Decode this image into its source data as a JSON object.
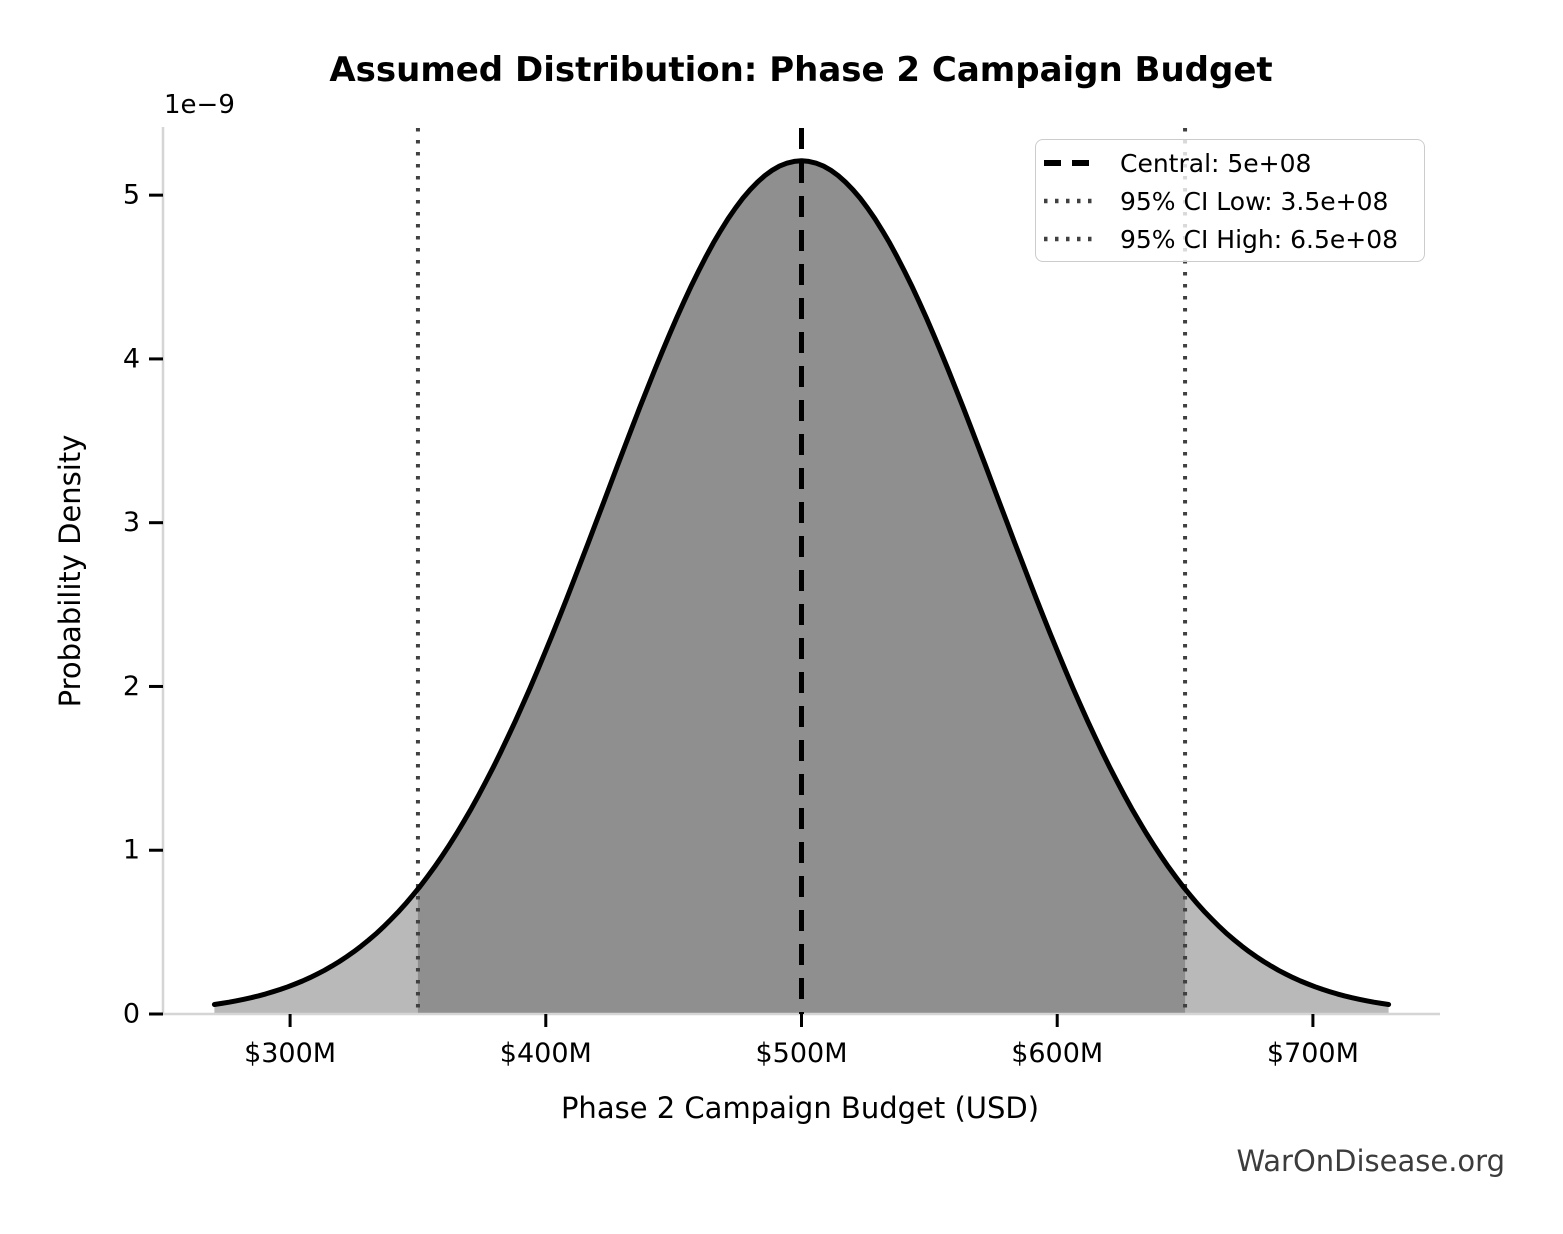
{
  "chart_data": {
    "type": "area",
    "title": "Assumed Distribution: Phase 2 Campaign Budget",
    "xlabel": "Phase 2 Campaign Budget (USD)",
    "ylabel": "Probability Density",
    "y_offset_label": "1e−9",
    "watermark": "WarOnDisease.org",
    "distribution": {
      "kind": "normal",
      "central": 500000000,
      "ci95_low": 350000000,
      "ci95_high": 650000000,
      "sigma": 76530000,
      "peak_density_1e9": 5.21
    },
    "curve_range_millions": [
      270.4,
      729.6
    ],
    "xlim_millions": [
      250.3,
      749.7
    ],
    "ylim_1e9": [
      0,
      5.41
    ],
    "x_ticks": [
      {
        "label": "$300M",
        "millions": 300
      },
      {
        "label": "$400M",
        "millions": 400
      },
      {
        "label": "$500M",
        "millions": 500
      },
      {
        "label": "$600M",
        "millions": 600
      },
      {
        "label": "$700M",
        "millions": 700
      }
    ],
    "y_ticks": [
      {
        "label": "0",
        "value": 0
      },
      {
        "label": "1",
        "value": 1
      },
      {
        "label": "2",
        "value": 2
      },
      {
        "label": "3",
        "value": 3
      },
      {
        "label": "4",
        "value": 4
      },
      {
        "label": "5",
        "value": 5
      }
    ],
    "legend": [
      {
        "label": "Central: 5e+08",
        "style": "dashed",
        "color": "#000000"
      },
      {
        "label": "95% CI Low: 3.5e+08",
        "style": "dotted",
        "color": "#404040"
      },
      {
        "label": "95% CI High: 6.5e+08",
        "style": "dotted",
        "color": "#404040"
      }
    ],
    "colors": {
      "curve": "#000000",
      "fill_tail": "#b9b9b9",
      "fill_ci": "#8f8f8f",
      "central_line": "#000000",
      "ci_line": "#404040",
      "spine": "#d5d5d5",
      "tick": "#000000",
      "watermark": "#3c3c3c",
      "background": "#ffffff"
    },
    "grid": false,
    "legend_position": "upper right"
  }
}
